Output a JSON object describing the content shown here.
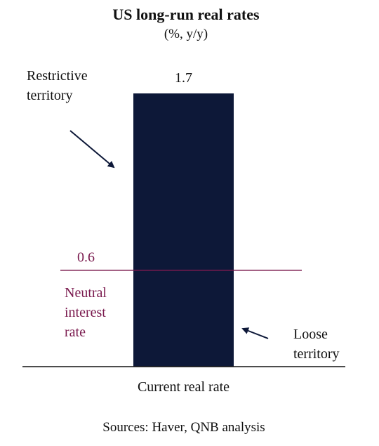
{
  "chart_data": {
    "type": "bar",
    "title": "US long-run real rates",
    "subtitle": "(%, y/y)",
    "categories": [
      "Current real rate"
    ],
    "values": [
      1.7
    ],
    "value_labels": [
      "1.7"
    ],
    "ylim": [
      0,
      1.7
    ],
    "grid": false,
    "reference_line": {
      "value": 0.6,
      "value_label": "0.6",
      "label_lines": [
        "Neutral",
        "interest",
        "rate"
      ]
    },
    "annotations": {
      "restrictive": [
        "Restrictive",
        "territory"
      ],
      "loose": [
        "Loose",
        "territory"
      ]
    },
    "source": "Sources: Haver, QNB analysis",
    "colors": {
      "bar": "#0d1838",
      "reference": "#7a1a4e",
      "axis": "#111111",
      "arrow": "#0d1838"
    }
  }
}
